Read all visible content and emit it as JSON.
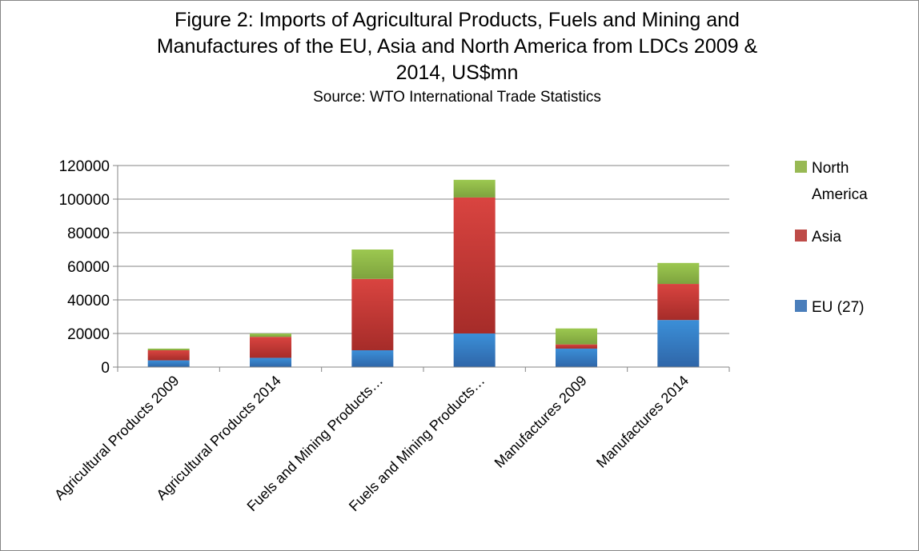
{
  "chart_data": {
    "type": "bar",
    "stacked": true,
    "title_lines": [
      "Figure 2: Imports of Agricultural Products, Fuels and Mining and",
      "Manufactures of the EU, Asia and North America from LDCs 2009 &",
      "2014, US$mn"
    ],
    "subtitle": "Source: WTO International Trade Statistics",
    "xlabel": "",
    "ylabel": "",
    "ylim": [
      0,
      120000
    ],
    "yticks": [
      0,
      20000,
      40000,
      60000,
      80000,
      100000,
      120000
    ],
    "grid": true,
    "legend_position": "right",
    "categories": [
      "Agricultural Products 2009",
      "Agricultural Products 2014",
      "Fuels and Mining Products…",
      "Fuels and Mining Products…",
      "Manufactures 2009",
      "Manufactures 2014"
    ],
    "series": [
      {
        "name": "EU (27)",
        "color": "#4a7ebb",
        "values": [
          4000,
          5500,
          10000,
          20000,
          11000,
          28000
        ]
      },
      {
        "name": "Asia",
        "color": "#be4b48",
        "values": [
          6000,
          12500,
          42500,
          81000,
          2500,
          21500
        ]
      },
      {
        "name": "North America",
        "color": "#98b954",
        "values": [
          1000,
          2000,
          17500,
          10500,
          9500,
          12500
        ]
      }
    ],
    "legend": [
      {
        "label_lines": [
          "North",
          "America"
        ],
        "color": "#98b954"
      },
      {
        "label_lines": [
          "Asia"
        ],
        "color": "#be4b48"
      },
      {
        "label_lines": [
          "EU (27)"
        ],
        "color": "#4a7ebb"
      }
    ]
  }
}
